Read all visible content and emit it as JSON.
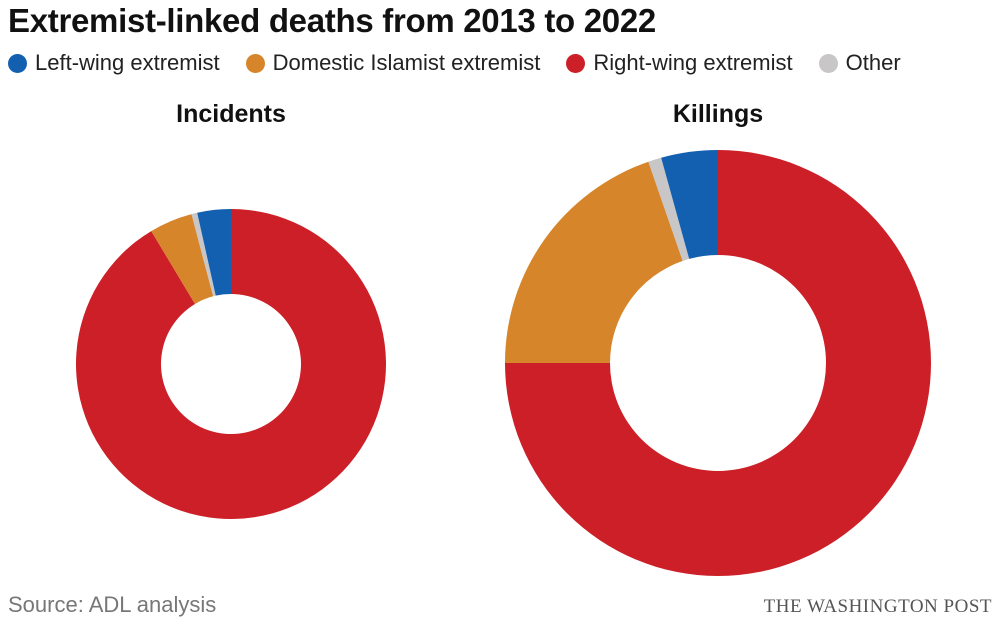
{
  "title": "Extremist-linked deaths from 2013 to 2022",
  "legend": [
    {
      "label": "Left-wing extremist",
      "color": "#1460b0"
    },
    {
      "label": "Domestic Islamist extremist",
      "color": "#d6852a"
    },
    {
      "label": "Right-wing extremist",
      "color": "#cc1f27"
    },
    {
      "label": "Other",
      "color": "#c8c6c6"
    }
  ],
  "source": "Source: ADL analysis",
  "credit": "THE WASHINGTON POST",
  "chart_data": [
    {
      "type": "pie",
      "title": "Incidents",
      "donut": true,
      "categories": [
        "Right-wing extremist",
        "Domestic Islamist extremist",
        "Other",
        "Left-wing extremist"
      ],
      "values": [
        91.4,
        4.5,
        0.6,
        3.5
      ],
      "unit": "%"
    },
    {
      "type": "pie",
      "title": "Killings",
      "donut": true,
      "categories": [
        "Right-wing extremist",
        "Domestic Islamist extremist",
        "Other",
        "Left-wing extremist"
      ],
      "values": [
        75.0,
        19.7,
        1.0,
        4.3
      ],
      "unit": "%"
    }
  ]
}
